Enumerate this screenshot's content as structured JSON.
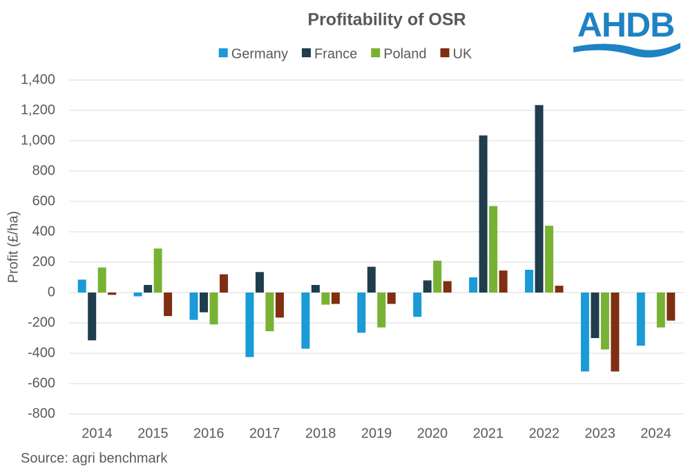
{
  "chart_data": {
    "type": "bar",
    "title": "Profitability of OSR",
    "logo": "AHDB",
    "y_label": "Profit (£/ha)",
    "source": "Source: agri benchmark",
    "categories": [
      "2014",
      "2015",
      "2016",
      "2017",
      "2018",
      "2019",
      "2020",
      "2021",
      "2022",
      "2023",
      "2024"
    ],
    "series": [
      {
        "name": "Germany",
        "color": "#1a9ad6",
        "values": [
          85,
          -25,
          -180,
          -425,
          -370,
          -265,
          -160,
          100,
          150,
          -520,
          -350
        ]
      },
      {
        "name": "France",
        "color": "#1f3d4c",
        "values": [
          -315,
          50,
          -130,
          135,
          50,
          170,
          80,
          1035,
          1235,
          -300,
          null
        ]
      },
      {
        "name": "Poland",
        "color": "#78b234",
        "values": [
          165,
          290,
          -210,
          -255,
          -80,
          -230,
          210,
          570,
          440,
          -375,
          -230
        ]
      },
      {
        "name": "UK",
        "color": "#7f2f12",
        "values": [
          -15,
          -155,
          120,
          -165,
          -75,
          -75,
          75,
          145,
          45,
          -520,
          -185
        ]
      }
    ],
    "ylim": [
      -800,
      1400
    ],
    "yticks": [
      -800,
      -600,
      -400,
      -200,
      0,
      200,
      400,
      600,
      800,
      {
        "value": 1000,
        "label": "1,000"
      },
      {
        "value": 1200,
        "label": "1,200"
      },
      {
        "value": 1400,
        "label": "1,400"
      }
    ],
    "grid": true,
    "legend": "top"
  }
}
